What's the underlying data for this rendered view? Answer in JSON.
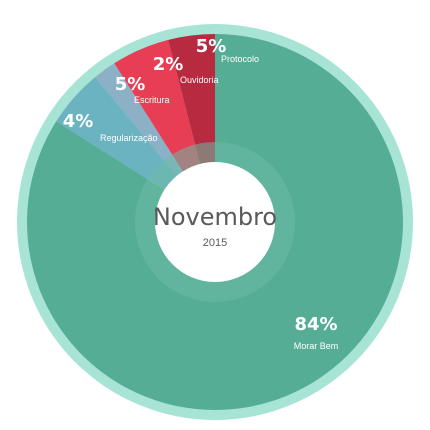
{
  "chart_data": {
    "type": "pie",
    "center_title": "Novembro",
    "center_subtitle": "2015",
    "slices": [
      {
        "name": "Morar Bem",
        "value": 84,
        "label": "84%",
        "color": "#56ad95"
      },
      {
        "name": "Protocolo",
        "value": 5,
        "label": "5%",
        "color": "#6cb3c2"
      },
      {
        "name": "Ouvidoria",
        "value": 2,
        "label": "2%",
        "color": "#8cb0c6"
      },
      {
        "name": "Escritura",
        "value": 5,
        "label": "5%",
        "color": "#e73e55"
      },
      {
        "name": "Regularização",
        "value": 4,
        "label": "4%",
        "color": "#b72a3f"
      }
    ]
  },
  "colors": {
    "outer_ring": "#a7e4d6",
    "inner_ring": "#6cbca6",
    "center": "#ffffff"
  }
}
